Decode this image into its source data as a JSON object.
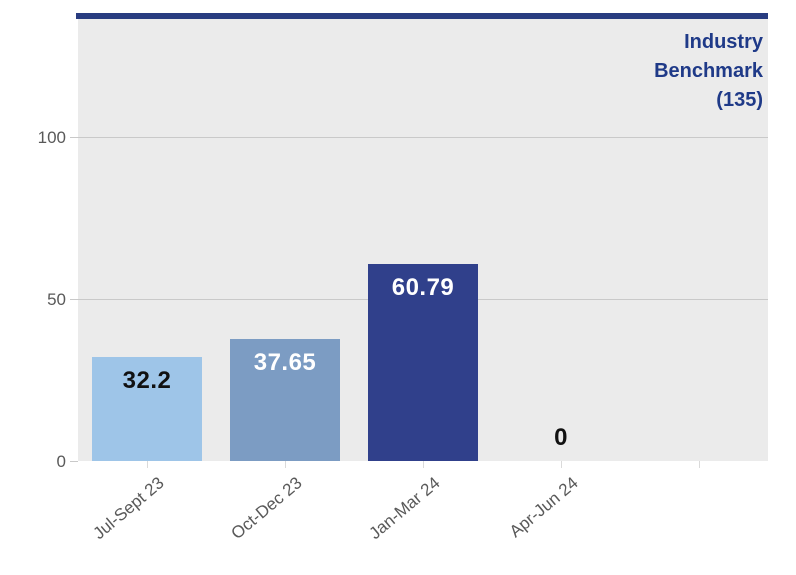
{
  "chart_data": {
    "type": "bar",
    "title": "",
    "xlabel": "",
    "ylabel": "",
    "categories": [
      "Jul-Sept 23",
      "Oct-Dec 23",
      "Jan-Mar 24",
      "Apr-Jun 24"
    ],
    "values": [
      32.2,
      37.65,
      60.79,
      0
    ],
    "value_labels": [
      "32.2",
      "37.65",
      "60.79",
      "0"
    ],
    "bar_colors": [
      "#9ec5e8",
      "#7c9cc3",
      "#30408b",
      "none"
    ],
    "value_label_colors": [
      "#111111",
      "#ffffff",
      "#ffffff",
      "#111111"
    ],
    "benchmark": {
      "value": 135,
      "label_lines": [
        "Industry",
        "Benchmark",
        "(135)"
      ],
      "line_color": "#283c80",
      "text_color": "#1f3a88"
    },
    "y_axis": {
      "tick_labels": [
        "0",
        "50",
        "100"
      ],
      "tick_values": [
        0,
        50,
        100
      ],
      "min": 0,
      "max": 136.4
    },
    "x_tick_slots": 5,
    "grid": "horizontal",
    "legend": "none",
    "plot_bg_color": "#ebebeb",
    "axis_text_color": "#595959"
  }
}
